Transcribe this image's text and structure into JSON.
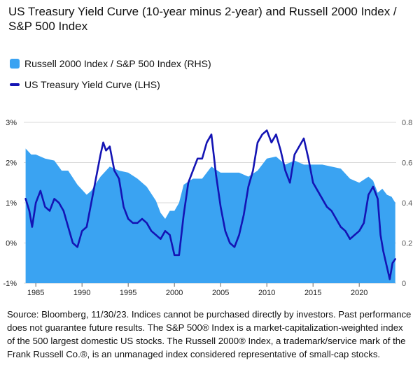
{
  "title": "US Treasury Yield Curve (10-year minus 2-year) and Russell 2000 Index / S&P 500 Index",
  "legend": {
    "area_label": "Russell 2000 Index / S&P 500 Index (RHS)",
    "line_label": "US Treasury Yield Curve (LHS)"
  },
  "source_text": "Source: Bloomberg, 11/30/23. Indices cannot be purchased directly by investors. Past performance does not guarantee future results. The S&P 500® Index is a market-capitalization-weighted index of the 500 largest domestic US stocks. The Russell 2000® Index, a trademark/service mark of the Frank Russell Co.®, is an unmanaged index considered representative of small-cap stocks.",
  "colors": {
    "area": "#3aa3f2",
    "line": "#1414b4",
    "grid": "#d9d9d9",
    "axis_text": "#555555"
  },
  "chart_data": {
    "type": "line",
    "x_ticks": [
      1985,
      1990,
      1995,
      2000,
      2005,
      2010,
      2015,
      2020
    ],
    "xlim": [
      1983.7,
      2024
    ],
    "left_axis": {
      "ticks": [
        "3%",
        "2%",
        "1%",
        "0%",
        "-1%"
      ],
      "values": [
        3,
        2,
        1,
        0,
        -1
      ],
      "ylim": [
        -1,
        3
      ]
    },
    "right_axis": {
      "ticks": [
        "0.8",
        "0.6",
        "0.4",
        "0.2",
        "0"
      ],
      "values": [
        0.8,
        0.6,
        0.4,
        0.2,
        0
      ],
      "ylim": [
        0,
        0.8
      ]
    },
    "grid": true,
    "series": [
      {
        "name": "Russell 2000 Index / S&P 500 Index (RHS)",
        "type": "area",
        "axis": "right",
        "x": [
          1983.9,
          1984.5,
          1985,
          1986,
          1987,
          1987.8,
          1988.5,
          1989.5,
          1990.5,
          1991,
          1992,
          1993,
          1994,
          1995,
          1996,
          1997,
          1998,
          1998.5,
          1999,
          1999.5,
          2000,
          2000.5,
          2001,
          2002,
          2003,
          2004,
          2005,
          2006,
          2007,
          2008,
          2009,
          2010,
          2011,
          2012,
          2013,
          2014,
          2015,
          2016,
          2017,
          2018,
          2019,
          2020,
          2021,
          2021.5,
          2022,
          2022.5,
          2023,
          2023.5,
          2023.9
        ],
        "values": [
          0.67,
          0.64,
          0.64,
          0.62,
          0.61,
          0.56,
          0.56,
          0.49,
          0.44,
          0.46,
          0.53,
          0.58,
          0.56,
          0.55,
          0.52,
          0.48,
          0.41,
          0.35,
          0.32,
          0.36,
          0.36,
          0.4,
          0.49,
          0.52,
          0.52,
          0.58,
          0.55,
          0.55,
          0.55,
          0.53,
          0.56,
          0.62,
          0.63,
          0.59,
          0.61,
          0.59,
          0.59,
          0.59,
          0.58,
          0.57,
          0.52,
          0.5,
          0.53,
          0.51,
          0.45,
          0.47,
          0.44,
          0.43,
          0.4
        ]
      },
      {
        "name": "US Treasury Yield Curve (LHS)",
        "type": "line",
        "axis": "left",
        "x": [
          1983.9,
          1984.3,
          1984.6,
          1985,
          1985.5,
          1986,
          1986.5,
          1987,
          1987.5,
          1988,
          1988.5,
          1989,
          1989.5,
          1990,
          1990.5,
          1991,
          1991.5,
          1992,
          1992.3,
          1992.6,
          1993,
          1993.5,
          1994,
          1994.5,
          1995,
          1995.5,
          1996,
          1996.5,
          1997,
          1997.5,
          1998,
          1998.5,
          1999,
          1999.5,
          2000,
          2000.5,
          2001,
          2001.5,
          2002,
          2002.5,
          2003,
          2003.5,
          2004,
          2004.5,
          2005,
          2005.5,
          2006,
          2006.5,
          2007,
          2007.5,
          2008,
          2008.5,
          2009,
          2009.5,
          2010,
          2010.5,
          2011,
          2011.5,
          2012,
          2012.5,
          2013,
          2013.5,
          2014,
          2014.5,
          2015,
          2015.5,
          2016,
          2016.5,
          2017,
          2017.5,
          2018,
          2018.5,
          2019,
          2019.5,
          2020,
          2020.5,
          2021,
          2021.5,
          2022,
          2022.3,
          2022.6,
          2023,
          2023.3,
          2023.6,
          2023.9
        ],
        "values": [
          1.1,
          0.8,
          0.4,
          1.0,
          1.3,
          0.9,
          0.8,
          1.1,
          1.0,
          0.8,
          0.4,
          0.0,
          -0.1,
          0.3,
          0.4,
          1.0,
          1.6,
          2.2,
          2.5,
          2.3,
          2.4,
          1.8,
          1.6,
          0.9,
          0.6,
          0.5,
          0.5,
          0.6,
          0.5,
          0.3,
          0.2,
          0.1,
          0.3,
          0.2,
          -0.3,
          -0.3,
          0.7,
          1.5,
          1.8,
          2.1,
          2.1,
          2.5,
          2.7,
          1.7,
          0.9,
          0.3,
          0.0,
          -0.1,
          0.2,
          0.7,
          1.4,
          1.8,
          2.5,
          2.7,
          2.8,
          2.5,
          2.7,
          2.3,
          1.8,
          1.5,
          2.2,
          2.4,
          2.6,
          2.1,
          1.5,
          1.3,
          1.1,
          0.9,
          0.8,
          0.6,
          0.4,
          0.3,
          0.1,
          0.2,
          0.3,
          0.5,
          1.2,
          1.4,
          1.1,
          0.2,
          -0.2,
          -0.6,
          -0.9,
          -0.5,
          -0.4
        ]
      }
    ]
  }
}
